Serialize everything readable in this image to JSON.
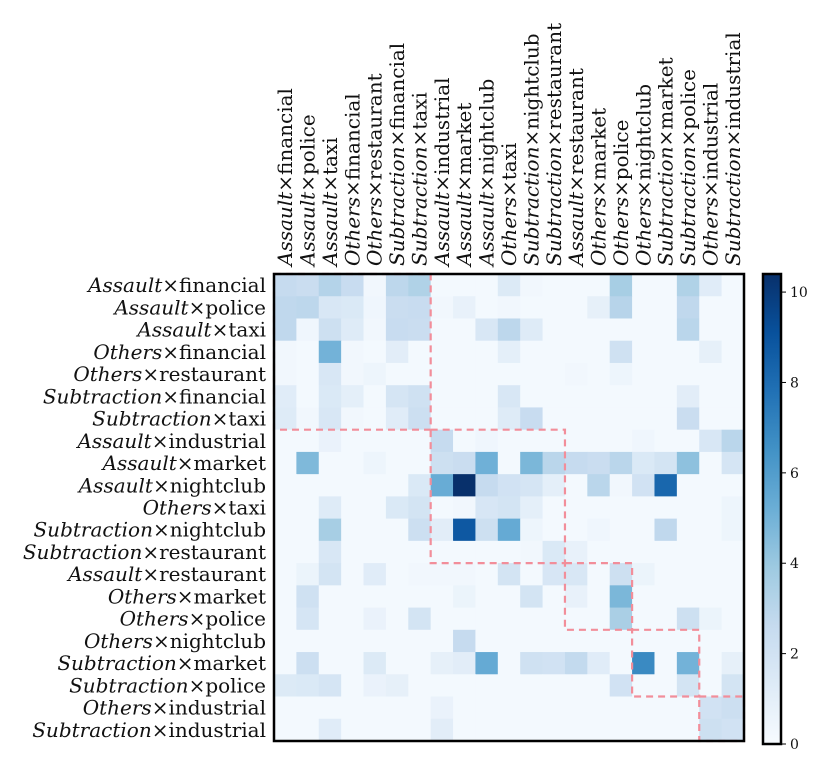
{
  "chart_data": {
    "type": "heatmap",
    "labels": [
      {
        "event": "Assault",
        "place": "financial"
      },
      {
        "event": "Assault",
        "place": "police"
      },
      {
        "event": "Assault",
        "place": "taxi"
      },
      {
        "event": "Others",
        "place": "financial"
      },
      {
        "event": "Others",
        "place": "restaurant"
      },
      {
        "event": "Subtraction",
        "place": "financial"
      },
      {
        "event": "Subtraction",
        "place": "taxi"
      },
      {
        "event": "Assault",
        "place": "industrial"
      },
      {
        "event": "Assault",
        "place": "market"
      },
      {
        "event": "Assault",
        "place": "nightclub"
      },
      {
        "event": "Others",
        "place": "taxi"
      },
      {
        "event": "Subtraction",
        "place": "nightclub"
      },
      {
        "event": "Subtraction",
        "place": "restaurant"
      },
      {
        "event": "Assault",
        "place": "restaurant"
      },
      {
        "event": "Others",
        "place": "market"
      },
      {
        "event": "Others",
        "place": "police"
      },
      {
        "event": "Others",
        "place": "nightclub"
      },
      {
        "event": "Subtraction",
        "place": "market"
      },
      {
        "event": "Subtraction",
        "place": "police"
      },
      {
        "event": "Others",
        "place": "industrial"
      },
      {
        "event": "Subtraction",
        "place": "industrial"
      }
    ],
    "separator": "×",
    "values": [
      [
        2.6,
        2.4,
        3.2,
        2.5,
        0.3,
        2.9,
        3.3,
        0.2,
        0.2,
        0.2,
        1.4,
        0.3,
        0.2,
        0.2,
        0.2,
        3.6,
        0.2,
        0.2,
        3.3,
        1.2,
        0.2
      ],
      [
        2.8,
        2.9,
        1.6,
        1.5,
        0.4,
        2.4,
        2.5,
        0.3,
        0.8,
        0.2,
        0.3,
        0.2,
        0.2,
        0.2,
        0.9,
        3.1,
        0.2,
        0.2,
        2.8,
        0.2,
        0.2
      ],
      [
        2.8,
        0.4,
        2.2,
        1.3,
        0.3,
        2.5,
        2.4,
        0.2,
        0.2,
        1.6,
        2.9,
        1.3,
        0.2,
        0.2,
        0.2,
        0.2,
        0.2,
        0.2,
        3.0,
        0.2,
        0.2
      ],
      [
        0.3,
        0.2,
        5.0,
        0.3,
        0.2,
        1.1,
        0.2,
        0.2,
        0.2,
        0.2,
        1.0,
        0.2,
        0.2,
        0.2,
        0.2,
        2.1,
        0.2,
        0.2,
        0.2,
        0.9,
        0.2
      ],
      [
        0.3,
        0.2,
        1.6,
        0.3,
        0.5,
        0.2,
        0.2,
        0.2,
        0.2,
        0.2,
        0.2,
        0.2,
        0.2,
        0.3,
        0.2,
        0.5,
        0.2,
        0.2,
        0.2,
        0.2,
        0.2
      ],
      [
        1.2,
        0.2,
        1.5,
        1.0,
        0.2,
        1.8,
        2.1,
        0.2,
        0.2,
        0.2,
        1.6,
        0.2,
        0.2,
        0.2,
        0.2,
        0.2,
        0.2,
        0.2,
        1.1,
        0.2,
        0.2
      ],
      [
        1.3,
        0.3,
        1.6,
        0.3,
        0.2,
        1.2,
        2.3,
        0.2,
        0.2,
        0.2,
        1.3,
        2.5,
        0.2,
        0.2,
        0.2,
        0.2,
        0.2,
        0.2,
        2.4,
        0.2,
        0.2
      ],
      [
        0.2,
        0.2,
        0.7,
        0.2,
        0.2,
        0.2,
        0.2,
        2.6,
        0.2,
        0.4,
        0.2,
        0.2,
        0.2,
        0.2,
        0.2,
        0.2,
        0.4,
        0.2,
        0.2,
        1.6,
        3.0
      ],
      [
        0.2,
        4.7,
        0.2,
        0.2,
        0.5,
        0.2,
        0.2,
        2.2,
        2.4,
        5.1,
        0.2,
        4.8,
        3.0,
        2.6,
        2.4,
        3.0,
        1.5,
        1.9,
        4.3,
        0.2,
        1.8
      ],
      [
        0.2,
        0.2,
        0.2,
        0.2,
        0.2,
        0.2,
        1.5,
        5.3,
        10.4,
        2.6,
        2.0,
        1.8,
        1.0,
        0.2,
        3.0,
        0.3,
        2.0,
        8.2,
        0.2,
        0.2,
        0.2
      ],
      [
        0.2,
        0.2,
        1.3,
        0.2,
        0.2,
        1.5,
        1.9,
        0.2,
        0.3,
        1.7,
        1.9,
        1.0,
        0.2,
        0.2,
        0.2,
        0.2,
        0.2,
        0.2,
        0.2,
        0.2,
        0.5
      ],
      [
        0.2,
        0.2,
        3.6,
        0.2,
        0.2,
        0.2,
        2.3,
        1.1,
        8.8,
        2.2,
        5.4,
        0.5,
        0.2,
        0.2,
        0.4,
        0.2,
        0.2,
        2.8,
        0.2,
        0.2,
        0.5
      ],
      [
        0.2,
        0.2,
        1.6,
        0.2,
        0.2,
        0.2,
        0.2,
        0.2,
        0.2,
        0.2,
        0.2,
        0.3,
        1.5,
        0.8,
        0.2,
        0.2,
        0.2,
        0.2,
        0.2,
        0.2,
        0.2
      ],
      [
        0.2,
        0.6,
        1.9,
        0.2,
        1.2,
        0.2,
        0.3,
        0.3,
        0.3,
        0.2,
        1.9,
        0.2,
        1.7,
        1.6,
        0.2,
        2.2,
        0.6,
        0.2,
        0.2,
        0.2,
        0.2
      ],
      [
        0.2,
        2.1,
        0.2,
        0.2,
        0.2,
        0.2,
        0.2,
        0.2,
        0.6,
        0.2,
        0.2,
        1.9,
        0.2,
        0.8,
        0.2,
        4.8,
        0.2,
        0.2,
        0.2,
        0.2,
        0.2
      ],
      [
        0.2,
        1.8,
        0.2,
        0.2,
        0.7,
        0.2,
        1.9,
        0.2,
        0.2,
        0.2,
        0.2,
        0.2,
        0.2,
        0.2,
        0.2,
        3.5,
        0.2,
        0.2,
        2.2,
        0.6,
        0.2
      ],
      [
        0.2,
        0.2,
        0.2,
        0.2,
        0.2,
        0.2,
        0.2,
        0.2,
        2.6,
        0.2,
        0.2,
        0.2,
        0.2,
        0.2,
        0.2,
        0.2,
        0.2,
        0.2,
        0.2,
        0.2,
        0.2
      ],
      [
        0.2,
        2.3,
        0.2,
        0.2,
        1.4,
        0.2,
        0.2,
        0.9,
        1.1,
        5.4,
        0.2,
        2.1,
        2.0,
        2.7,
        1.2,
        0.2,
        6.8,
        0.2,
        5.0,
        0.2,
        0.9
      ],
      [
        1.4,
        1.5,
        1.8,
        0.2,
        0.7,
        0.9,
        0.2,
        0.2,
        0.2,
        0.2,
        0.2,
        0.2,
        0.2,
        0.2,
        0.2,
        2.0,
        0.2,
        0.2,
        1.9,
        0.2,
        1.9
      ],
      [
        0.2,
        0.2,
        0.2,
        0.2,
        0.2,
        0.2,
        0.2,
        0.7,
        0.2,
        0.2,
        0.2,
        0.2,
        0.2,
        0.2,
        0.2,
        0.2,
        0.2,
        0.2,
        0.2,
        2.0,
        2.3
      ],
      [
        0.2,
        0.2,
        1.2,
        0.2,
        0.2,
        0.2,
        0.2,
        1.1,
        0.2,
        0.2,
        0.2,
        0.2,
        0.2,
        0.2,
        0.2,
        0.2,
        0.2,
        0.2,
        0.2,
        2.2,
        2.0
      ]
    ],
    "blocks": [
      [
        0,
        6
      ],
      [
        7,
        12
      ],
      [
        13,
        15
      ],
      [
        16,
        18
      ],
      [
        19,
        20
      ]
    ],
    "block_line_color": "#f28e9a",
    "colormap": "Blues",
    "color_range": [
      0,
      10.4
    ],
    "colorbar_ticks": [
      0,
      2,
      4,
      6,
      8,
      10
    ],
    "colorbar_tick_labels": [
      "0",
      "2",
      "4",
      "6",
      "8",
      "10"
    ]
  }
}
